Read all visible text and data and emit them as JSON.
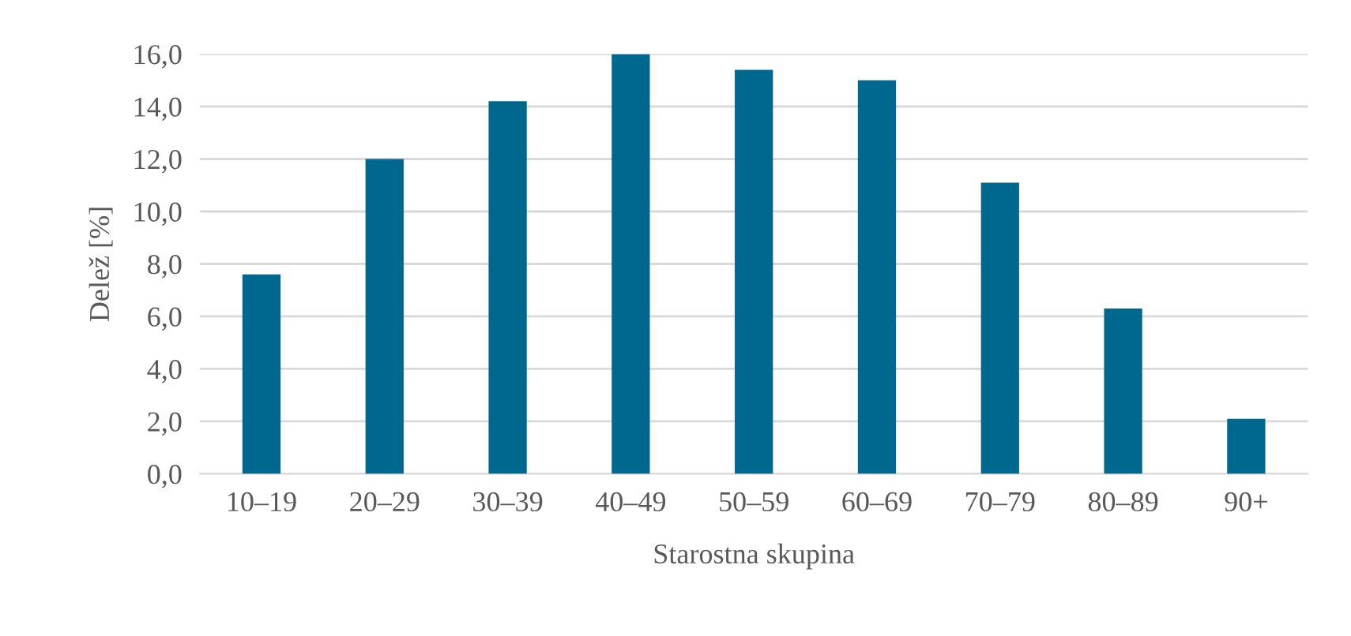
{
  "chart_data": {
    "type": "bar",
    "categories": [
      "10–19",
      "20–29",
      "30–39",
      "40–49",
      "50–59",
      "60–69",
      "70–79",
      "80–89",
      "90+"
    ],
    "values": [
      7.6,
      12.0,
      14.2,
      16.0,
      15.4,
      15.0,
      11.1,
      6.3,
      2.1
    ],
    "color": "#00688e",
    "xlabel": "Starostna skupina",
    "ylabel": "Delež [%]",
    "ylim": [
      0,
      16
    ],
    "yticks": [
      {
        "value": 0,
        "label": "0,0"
      },
      {
        "value": 2,
        "label": "2,0"
      },
      {
        "value": 4,
        "label": "4,0"
      },
      {
        "value": 6,
        "label": "6,0"
      },
      {
        "value": 8,
        "label": "8,0"
      },
      {
        "value": 10,
        "label": "10,0"
      },
      {
        "value": 12,
        "label": "12,0"
      },
      {
        "value": 14,
        "label": "14,0"
      },
      {
        "value": 16,
        "label": "16,0"
      }
    ],
    "grid": "y",
    "legend": false
  }
}
